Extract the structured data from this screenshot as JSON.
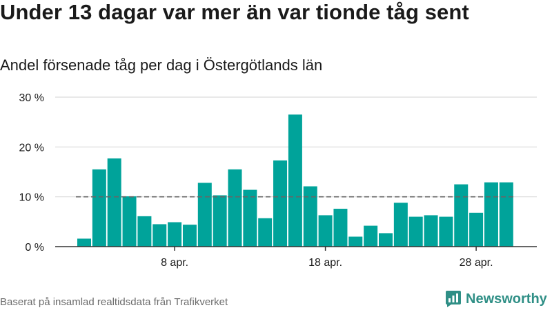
{
  "header": {
    "title": "Under 13 dagar var mer än var tionde tåg sent",
    "subtitle": "Andel försenade tåg per dag i Östergötlands län"
  },
  "footer": {
    "source": "Baserat på insamlad realtidsdata från Trafikverket",
    "brand": "Newsworthy"
  },
  "icons": {
    "brand_logo": "newsworthy-logo-icon"
  },
  "colors": {
    "bar": "#00a39a",
    "reference_line": "#666666",
    "gridline": "#d9d9d9",
    "brand": "#2f8f86"
  },
  "chart_data": {
    "type": "bar",
    "x_start_day": 2,
    "x_month_label": "apr.",
    "values": [
      1.6,
      15.5,
      17.7,
      10.1,
      6.1,
      4.5,
      4.9,
      4.4,
      12.8,
      10.3,
      15.5,
      11.4,
      5.7,
      17.3,
      26.5,
      12.1,
      6.3,
      7.6,
      2.0,
      4.2,
      2.7,
      8.8,
      6.0,
      6.3,
      6.0,
      12.5,
      6.8,
      12.9,
      12.9
    ],
    "reference_value": 10,
    "reference_style": "dashed",
    "ylim": [
      0,
      30
    ],
    "yticks": [
      0,
      10,
      20,
      30
    ],
    "ytick_labels": [
      "0 %",
      "10 %",
      "20 %",
      "30 %"
    ],
    "xticks": [
      "8 apr.",
      "18 apr.",
      "28 apr."
    ],
    "xtick_days": [
      8,
      18,
      28
    ],
    "grid": true,
    "legend": "none",
    "xlabel": "",
    "ylabel": ""
  }
}
